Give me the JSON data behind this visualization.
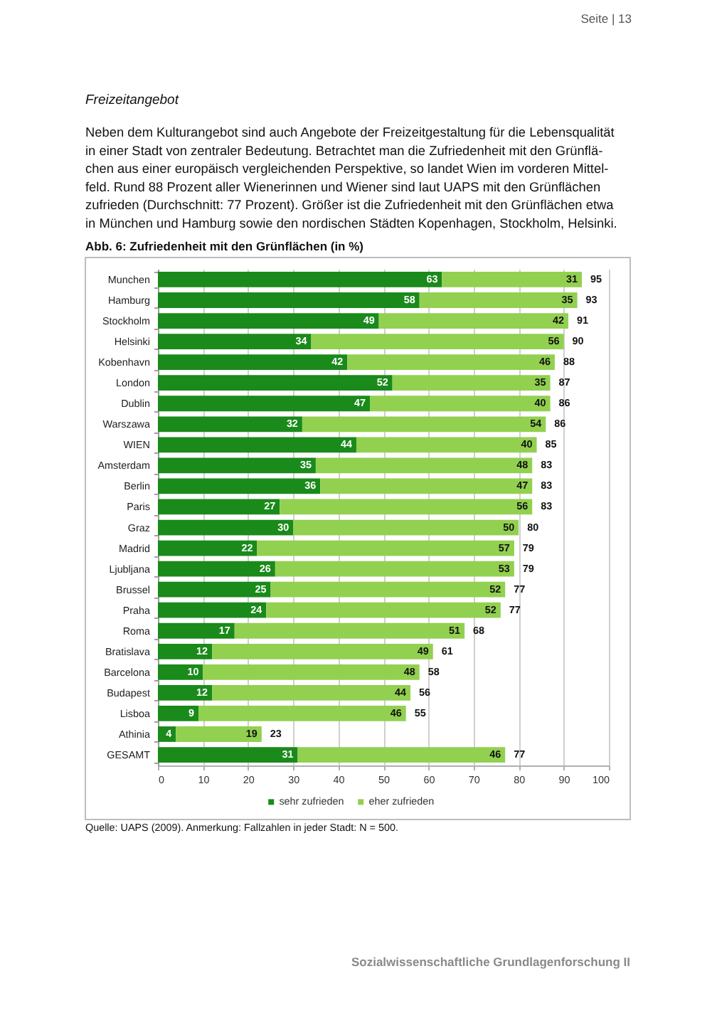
{
  "chart_data": {
    "type": "bar",
    "orientation": "horizontal",
    "stacked": true,
    "title": "Abb. 6: Zufriedenheit mit den Grünflächen (in %)",
    "categories": [
      "Munchen",
      "Hamburg",
      "Stockholm",
      "Helsinki",
      "Kobenhavn",
      "London",
      "Dublin",
      "Warszawa",
      "WIEN",
      "Amsterdam",
      "Berlin",
      "Paris",
      "Graz",
      "Madrid",
      "Ljubljana",
      "Brussel",
      "Praha",
      "Roma",
      "Bratislava",
      "Barcelona",
      "Budapest",
      "Lisboa",
      "Athinia",
      "GESAMT"
    ],
    "series": [
      {
        "name": "sehr zufrieden",
        "color": "#1a8a1a",
        "values": [
          63,
          58,
          49,
          34,
          42,
          52,
          47,
          32,
          44,
          35,
          36,
          27,
          30,
          22,
          26,
          25,
          24,
          17,
          12,
          10,
          12,
          9,
          4,
          31
        ]
      },
      {
        "name": "eher zufrieden",
        "color": "#92d050",
        "values": [
          31,
          35,
          42,
          56,
          46,
          35,
          40,
          54,
          40,
          48,
          47,
          56,
          50,
          57,
          53,
          52,
          52,
          51,
          49,
          48,
          44,
          46,
          19,
          46
        ]
      }
    ],
    "totals": [
      "95",
      "93",
      "91",
      "90",
      "88",
      "87",
      "86",
      "86",
      "85",
      "83",
      "83",
      "83",
      "80",
      "79",
      "79",
      "77",
      "77",
      "68",
      "61",
      "58",
      "56",
      "55",
      "23",
      "77"
    ],
    "data_labels": true,
    "xlim": [
      0,
      100
    ],
    "xticks": [
      0,
      10,
      20,
      30,
      40,
      50,
      60,
      70,
      80,
      90,
      100
    ],
    "grid": "x",
    "legend": "bottom",
    "annotations": [
      "Seite | 13",
      "Freizeitangebot",
      "Neben dem Kulturangebot sind auch Angebote der Freizeitgestaltung für die Lebensqualität\nin einer Stadt von zentraler Bedeutung. Betrachtet man die Zufriedenheit mit den Grünflä-\nchen aus einer europäisch vergleichenden Perspektive, so landet Wien im vorderen Mittel-\nfeld. Rund 88 Prozent aller Wienerinnen und Wiener sind laut UAPS mit den Grünflächen\nzufrieden (Durchschnitt: 77 Prozent). Größer ist die Zufriedenheit mit den Grünflächen etwa\nin München und Hamburg sowie den nordischen Städten Kopenhagen, Stockholm, Helsinki.",
      "Quelle: UAPS (2009). Anmerkung: Fallzahlen in jeder Stadt: N = 500.",
      "Sozialwissenschaftliche Grundlagenforschung II"
    ]
  }
}
